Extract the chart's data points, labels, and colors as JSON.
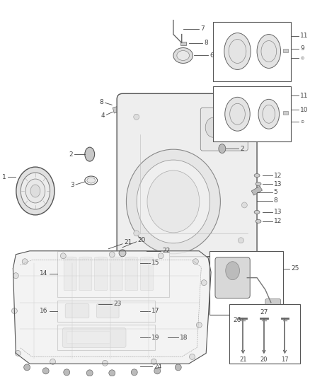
{
  "bg_color": "#ffffff",
  "fig_width": 4.38,
  "fig_height": 5.33,
  "dpi": 100,
  "lc": "#444444",
  "fs": 6.5
}
